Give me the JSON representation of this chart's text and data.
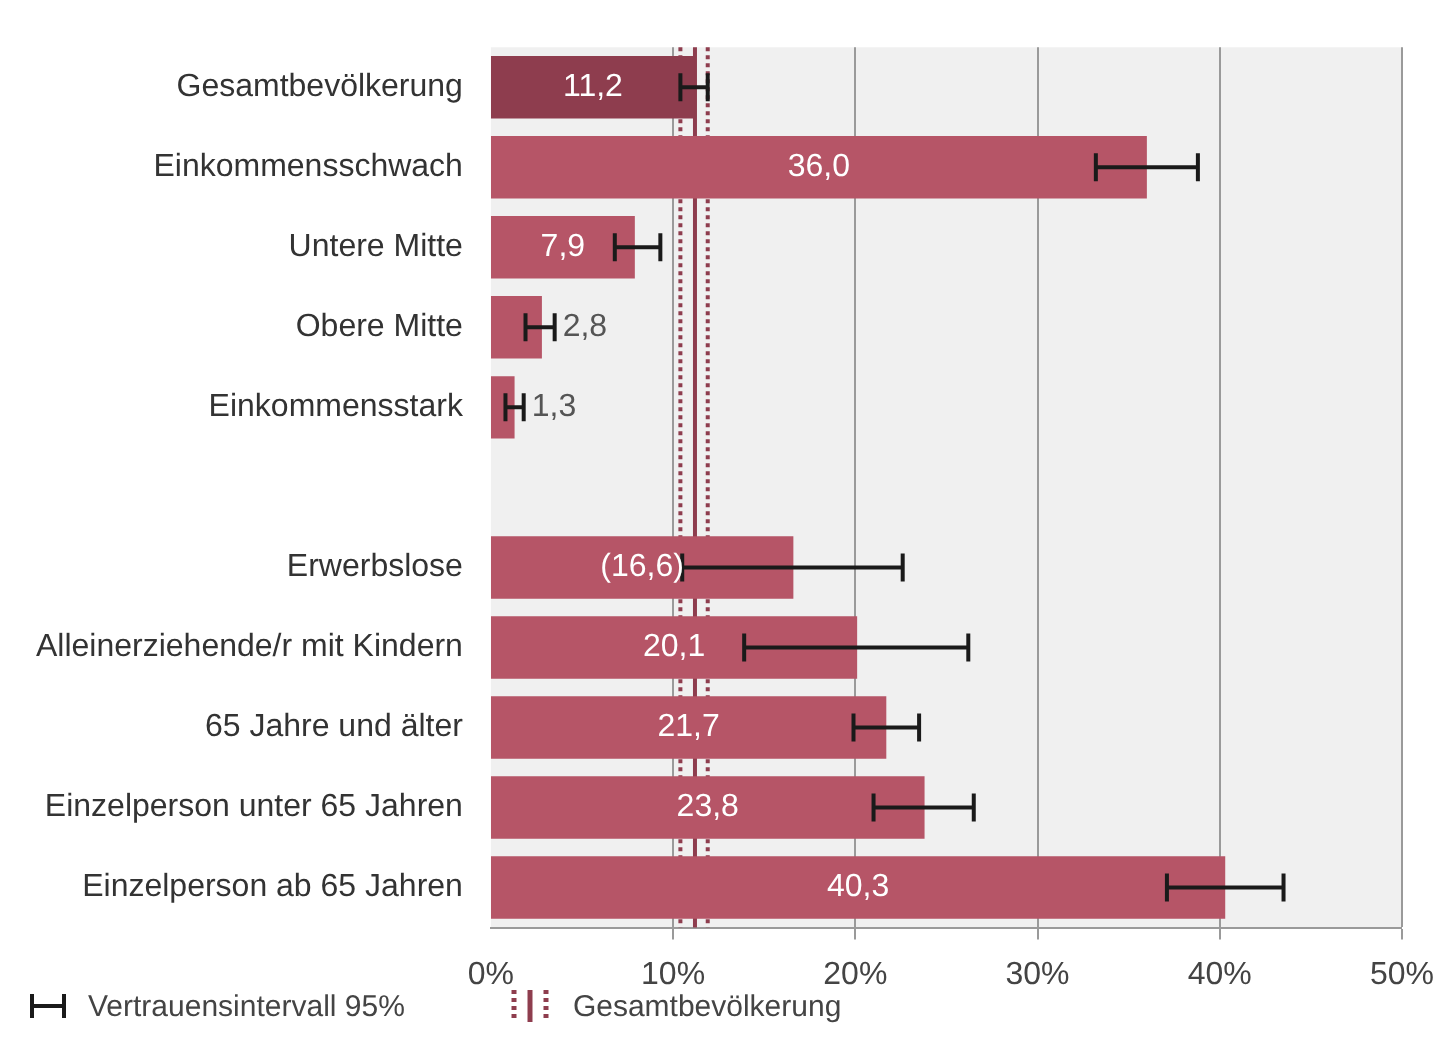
{
  "chart_data": {
    "type": "bar",
    "orientation": "horizontal",
    "categories": [
      "Gesamtbevölkerung",
      "Einkommensschwach",
      "Untere Mitte",
      "Obere Mitte",
      "Einkommensstark",
      null,
      "Erwerbslose",
      "Alleinerziehende/r mit Kindern",
      "65 Jahre und älter",
      "Einzelperson unter 65 Jahren",
      "Einzelperson ab 65 Jahren"
    ],
    "values": [
      11.2,
      36.0,
      7.9,
      2.8,
      1.3,
      null,
      16.6,
      20.1,
      21.7,
      23.8,
      40.3
    ],
    "value_labels": [
      "11,2",
      "36,0",
      "7,9",
      "2,8",
      "1,3",
      null,
      "(16,6)",
      "20,1",
      "21,7",
      "23,8",
      "40,3"
    ],
    "colors": [
      "#8e3d4e",
      "#b65567",
      "#b65567",
      "#b65567",
      "#b65567",
      null,
      "#b65567",
      "#b65567",
      "#b65567",
      "#b65567",
      "#b65567"
    ],
    "errors": [
      [
        10.4,
        11.9
      ],
      [
        33.2,
        38.8
      ],
      [
        6.8,
        9.3
      ],
      [
        1.9,
        3.5
      ],
      [
        0.8,
        1.8
      ],
      null,
      [
        10.5,
        22.6
      ],
      [
        13.9,
        26.2
      ],
      [
        19.9,
        23.5
      ],
      [
        21.0,
        26.5
      ],
      [
        37.1,
        43.5
      ]
    ],
    "xlim": [
      0,
      50
    ],
    "xticks": [
      {
        "value": 0,
        "label": "0%"
      },
      {
        "value": 10,
        "label": "10%"
      },
      {
        "value": 20,
        "label": "20%"
      },
      {
        "value": 30,
        "label": "30%"
      },
      {
        "value": 40,
        "label": "40%"
      },
      {
        "value": 50,
        "label": "50%"
      }
    ],
    "ref_lines": [
      {
        "axis": "x",
        "value": 10.4,
        "color": "#8e3d4e",
        "line_style": "dotted"
      },
      {
        "axis": "x",
        "value": 11.2,
        "color": "#8e3d4e",
        "line_style": "solid",
        "label": "Gesamtbevölkerung"
      },
      {
        "axis": "x",
        "value": 11.9,
        "color": "#8e3d4e",
        "line_style": "dotted"
      }
    ],
    "annotations": [
      "Vertrauensintervall 95%"
    ],
    "grid": "x"
  }
}
